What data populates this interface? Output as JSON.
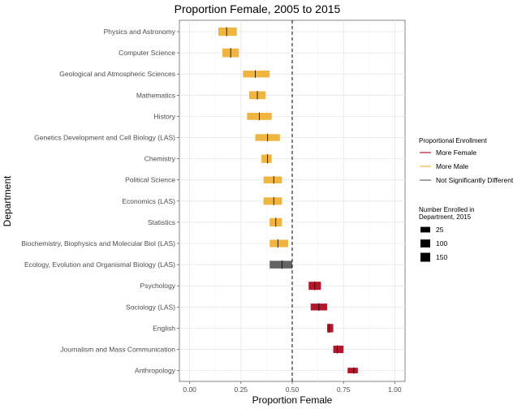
{
  "chart_data": {
    "type": "range-bar",
    "title": "Proportion Female, 2005 to 2015",
    "xlabel": "Proportion Female",
    "ylabel": "Department",
    "xlim": [
      -0.05,
      1.05
    ],
    "xticks": [
      0,
      0.25,
      0.5,
      0.75,
      1
    ],
    "xtick_labels": [
      "0.00",
      "0.25",
      "0.50",
      "0.75",
      "1.00"
    ],
    "reference_line": 0.5,
    "grid": true,
    "legend_color": {
      "title": "Proportional Enrollment",
      "items": [
        {
          "label": "More Female",
          "color": "#b2182b"
        },
        {
          "label": "More Male",
          "color": "#f0b440"
        },
        {
          "label": "Not Significantly Different",
          "color": "#636363"
        }
      ]
    },
    "legend_size": {
      "title_line1": "Number Enrolled in",
      "title_line2": "Department, 2015",
      "items": [
        {
          "label": "25",
          "enrolled": 25
        },
        {
          "label": "100",
          "enrolled": 100
        },
        {
          "label": "150",
          "enrolled": 150
        }
      ]
    },
    "departments": [
      {
        "name": "Physics and Astronomy",
        "low": 0.14,
        "high": 0.23,
        "mid": 0.18,
        "group": "More Male",
        "enrolled": 120
      },
      {
        "name": "Computer Science",
        "low": 0.16,
        "high": 0.24,
        "mid": 0.2,
        "group": "More Male",
        "enrolled": 140
      },
      {
        "name": "Geological and Atmospheric Sciences",
        "low": 0.26,
        "high": 0.39,
        "mid": 0.32,
        "group": "More Male",
        "enrolled": 60
      },
      {
        "name": "Mathematics",
        "low": 0.29,
        "high": 0.37,
        "mid": 0.33,
        "group": "More Male",
        "enrolled": 100
      },
      {
        "name": "History",
        "low": 0.28,
        "high": 0.4,
        "mid": 0.34,
        "group": "More Male",
        "enrolled": 70
      },
      {
        "name": "Genetics Development and Cell Biology (LAS)",
        "low": 0.32,
        "high": 0.44,
        "mid": 0.38,
        "group": "More Male",
        "enrolled": 60
      },
      {
        "name": "Chemistry",
        "low": 0.35,
        "high": 0.4,
        "mid": 0.38,
        "group": "More Male",
        "enrolled": 120
      },
      {
        "name": "Political Science",
        "low": 0.36,
        "high": 0.45,
        "mid": 0.41,
        "group": "More Male",
        "enrolled": 60
      },
      {
        "name": "Economics (LAS)",
        "low": 0.36,
        "high": 0.45,
        "mid": 0.41,
        "group": "More Male",
        "enrolled": 80
      },
      {
        "name": "Statistics",
        "low": 0.39,
        "high": 0.45,
        "mid": 0.42,
        "group": "More Male",
        "enrolled": 120
      },
      {
        "name": "Biochemistry, Biophysics and Molecular Biol (LAS)",
        "low": 0.39,
        "high": 0.48,
        "mid": 0.43,
        "group": "More Male",
        "enrolled": 80
      },
      {
        "name": "Ecology, Evolution and Organismal Biology (LAS)",
        "low": 0.39,
        "high": 0.5,
        "mid": 0.45,
        "group": "Not Significantly Different",
        "enrolled": 90
      },
      {
        "name": "Psychology",
        "low": 0.58,
        "high": 0.64,
        "mid": 0.61,
        "group": "More Female",
        "enrolled": 110
      },
      {
        "name": "Sociology (LAS)",
        "low": 0.59,
        "high": 0.67,
        "mid": 0.63,
        "group": "More Female",
        "enrolled": 60
      },
      {
        "name": "English",
        "low": 0.67,
        "high": 0.7,
        "mid": 0.68,
        "group": "More Female",
        "enrolled": 120
      },
      {
        "name": "Journalism and Mass Communication",
        "low": 0.7,
        "high": 0.75,
        "mid": 0.72,
        "group": "More Female",
        "enrolled": 80
      },
      {
        "name": "Anthropology",
        "low": 0.77,
        "high": 0.82,
        "mid": 0.8,
        "group": "More Female",
        "enrolled": 25
      }
    ]
  }
}
